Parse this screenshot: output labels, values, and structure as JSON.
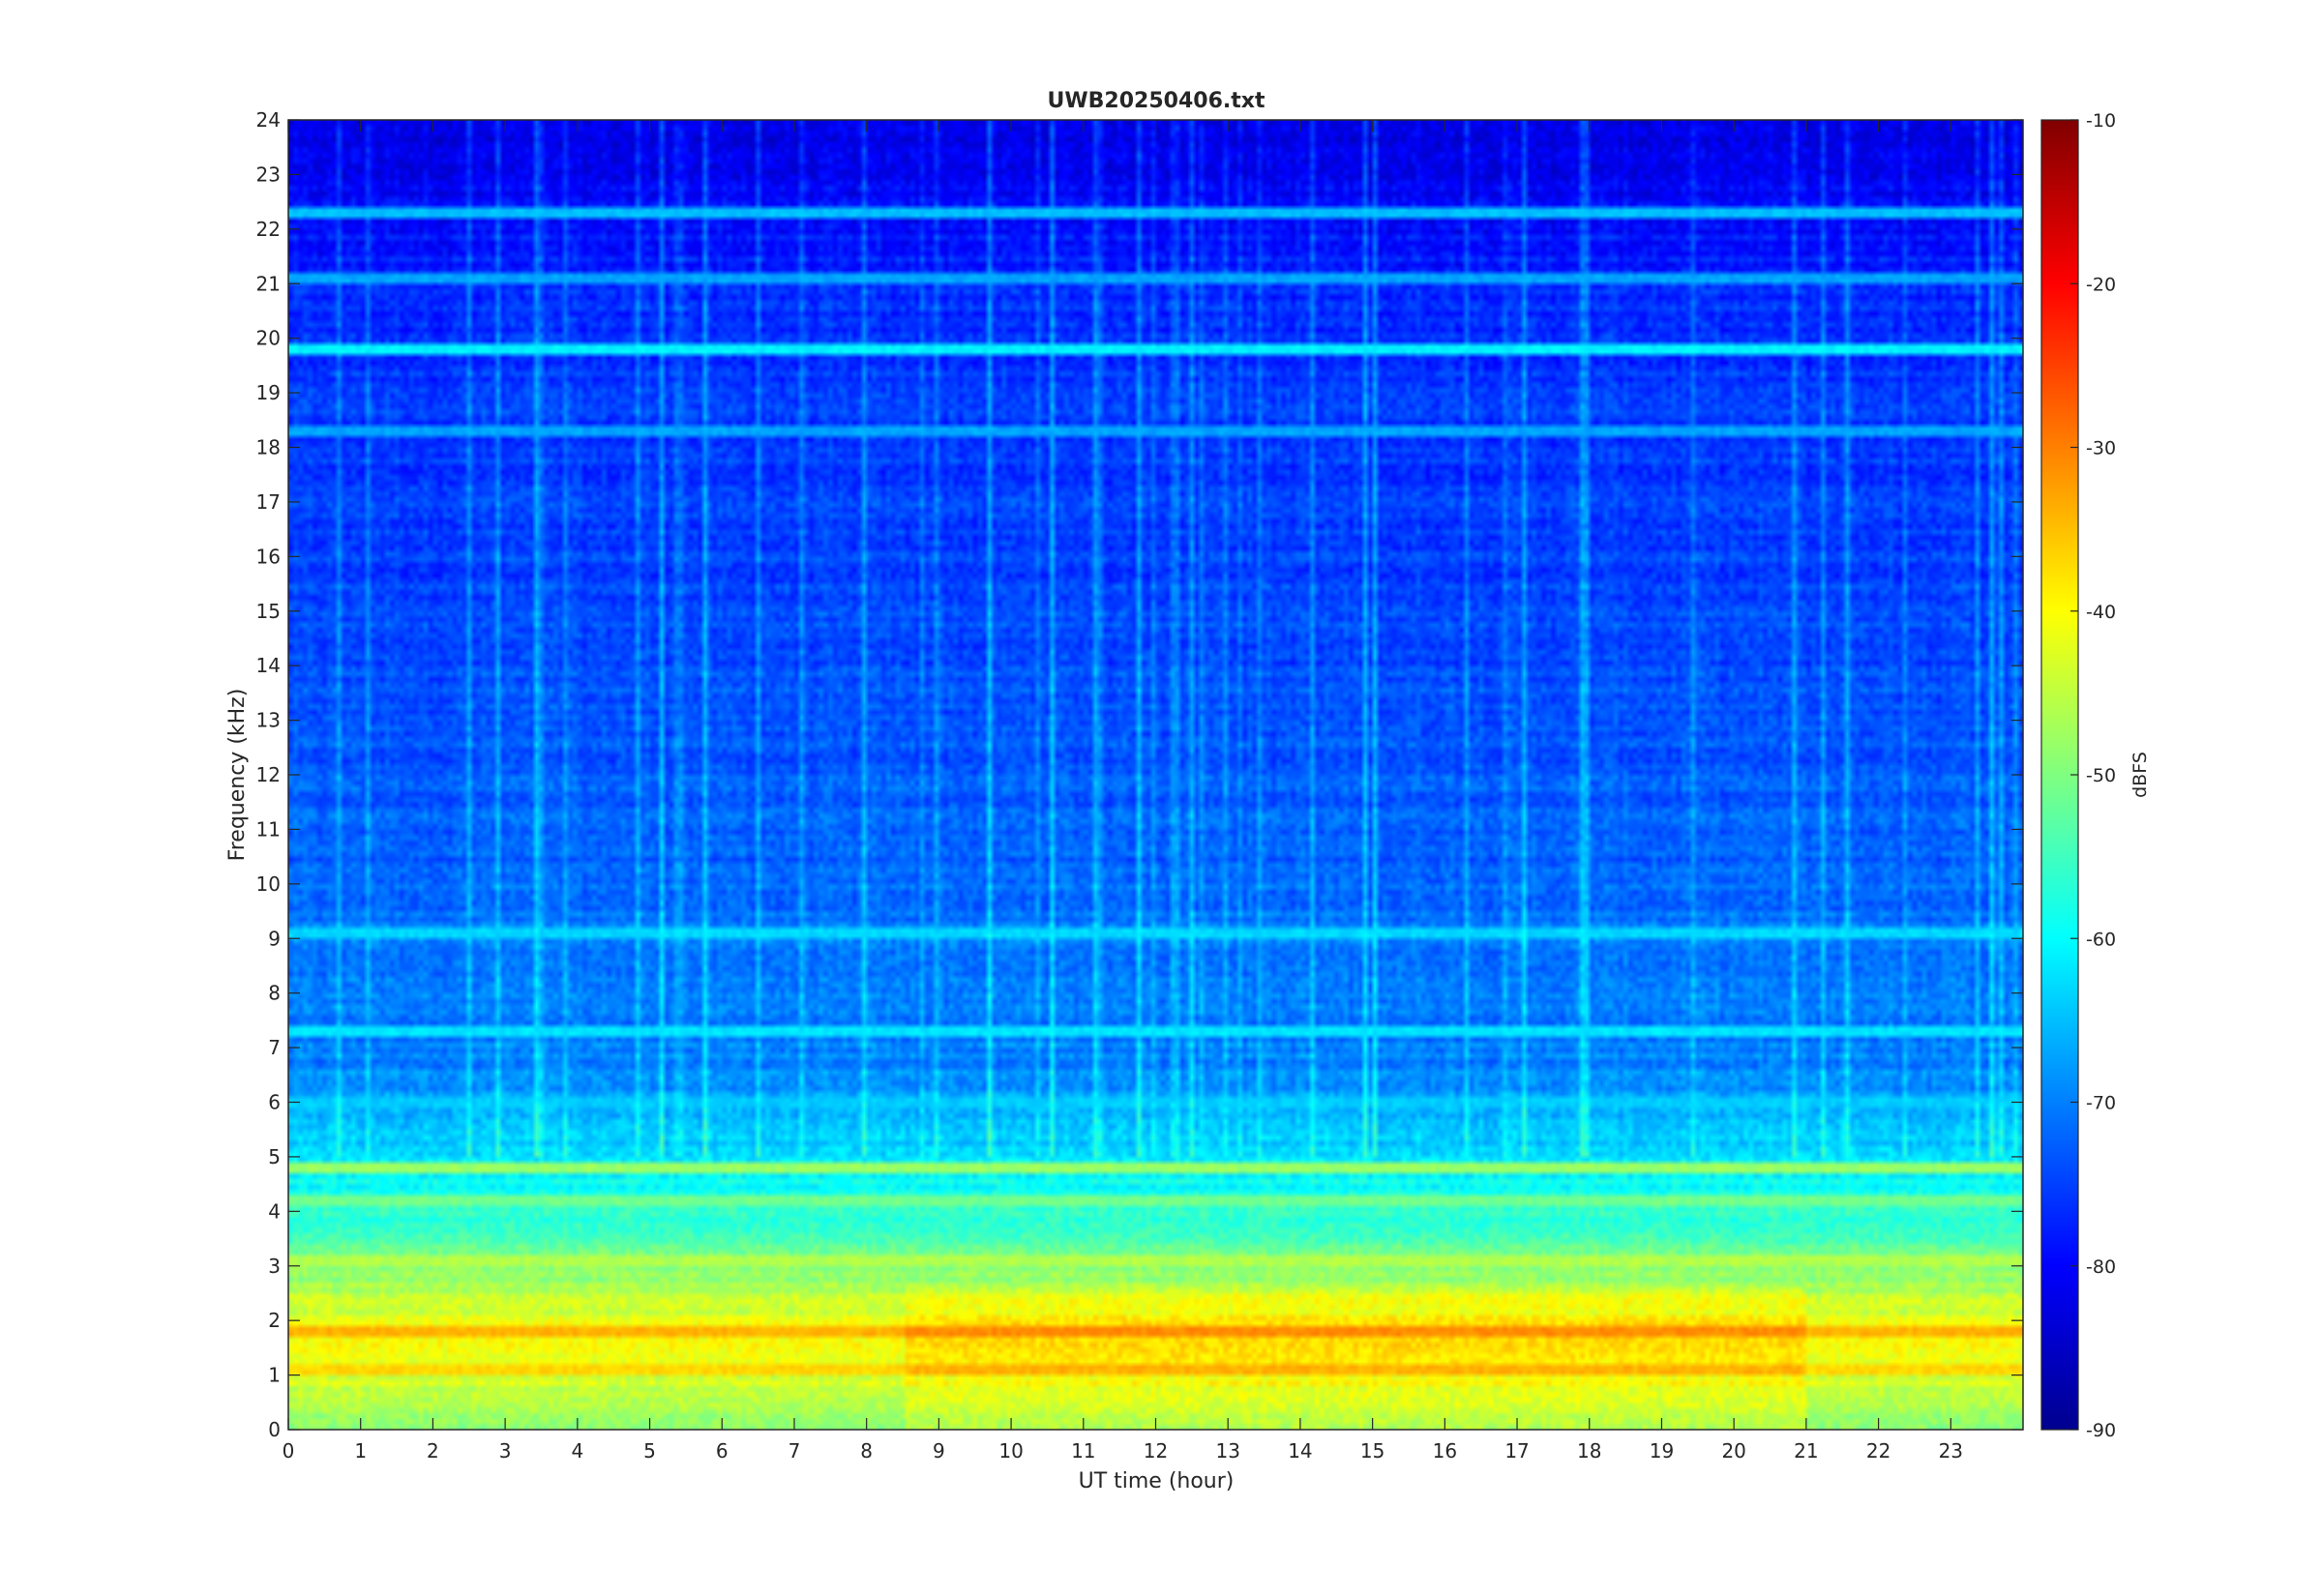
{
  "chart_data": {
    "type": "heatmap",
    "title": "UWB20250406.txt",
    "xlabel": "UT time (hour)",
    "ylabel": "Frequency (kHz)",
    "colorbar_label": "dBFS",
    "colormap": "jet",
    "xlim": [
      0,
      24
    ],
    "ylim": [
      0,
      24
    ],
    "clim": [
      -90,
      -10
    ],
    "x_ticks": [
      "0",
      "1",
      "2",
      "3",
      "4",
      "5",
      "6",
      "7",
      "8",
      "9",
      "10",
      "11",
      "12",
      "13",
      "14",
      "15",
      "16",
      "17",
      "18",
      "19",
      "20",
      "21",
      "22",
      "23"
    ],
    "y_ticks": [
      "0",
      "1",
      "2",
      "3",
      "4",
      "5",
      "6",
      "7",
      "8",
      "9",
      "10",
      "11",
      "12",
      "13",
      "14",
      "15",
      "16",
      "17",
      "18",
      "19",
      "20",
      "21",
      "22",
      "23",
      "24"
    ],
    "colorbar_ticks": [
      "-90",
      "-80",
      "-70",
      "-60",
      "-50",
      "-40",
      "-30",
      "-20",
      "-10"
    ],
    "grid": false,
    "level_profile": {
      "description_free_values": true,
      "freq_khz": [
        0,
        0.5,
        1,
        1.5,
        2,
        2.5,
        3,
        3.5,
        4,
        5,
        6,
        7,
        8,
        9,
        10,
        12,
        14,
        16,
        18,
        19.5,
        20,
        21,
        22,
        23,
        24
      ],
      "dbfs": [
        -50,
        -46,
        -43,
        -40,
        -42,
        -46,
        -49,
        -55,
        -57,
        -62,
        -68,
        -70,
        -70,
        -70,
        -72,
        -73,
        -74,
        -75,
        -75,
        -76,
        -76,
        -77,
        -79,
        -81,
        -82
      ]
    },
    "horizontal_lines": [
      {
        "freq_khz": 19.8,
        "dbfs": -60
      },
      {
        "freq_khz": 22.3,
        "dbfs": -64
      },
      {
        "freq_khz": 18.3,
        "dbfs": -66
      },
      {
        "freq_khz": 21.1,
        "dbfs": -66
      },
      {
        "freq_khz": 9.1,
        "dbfs": -62
      },
      {
        "freq_khz": 7.3,
        "dbfs": -61
      },
      {
        "freq_khz": 6.0,
        "dbfs": -63
      },
      {
        "freq_khz": 4.8,
        "dbfs": -47
      },
      {
        "freq_khz": 4.2,
        "dbfs": -50
      },
      {
        "freq_khz": 3.1,
        "dbfs": -45
      },
      {
        "freq_khz": 1.8,
        "dbfs": -33
      },
      {
        "freq_khz": 1.1,
        "dbfs": -36
      }
    ]
  }
}
